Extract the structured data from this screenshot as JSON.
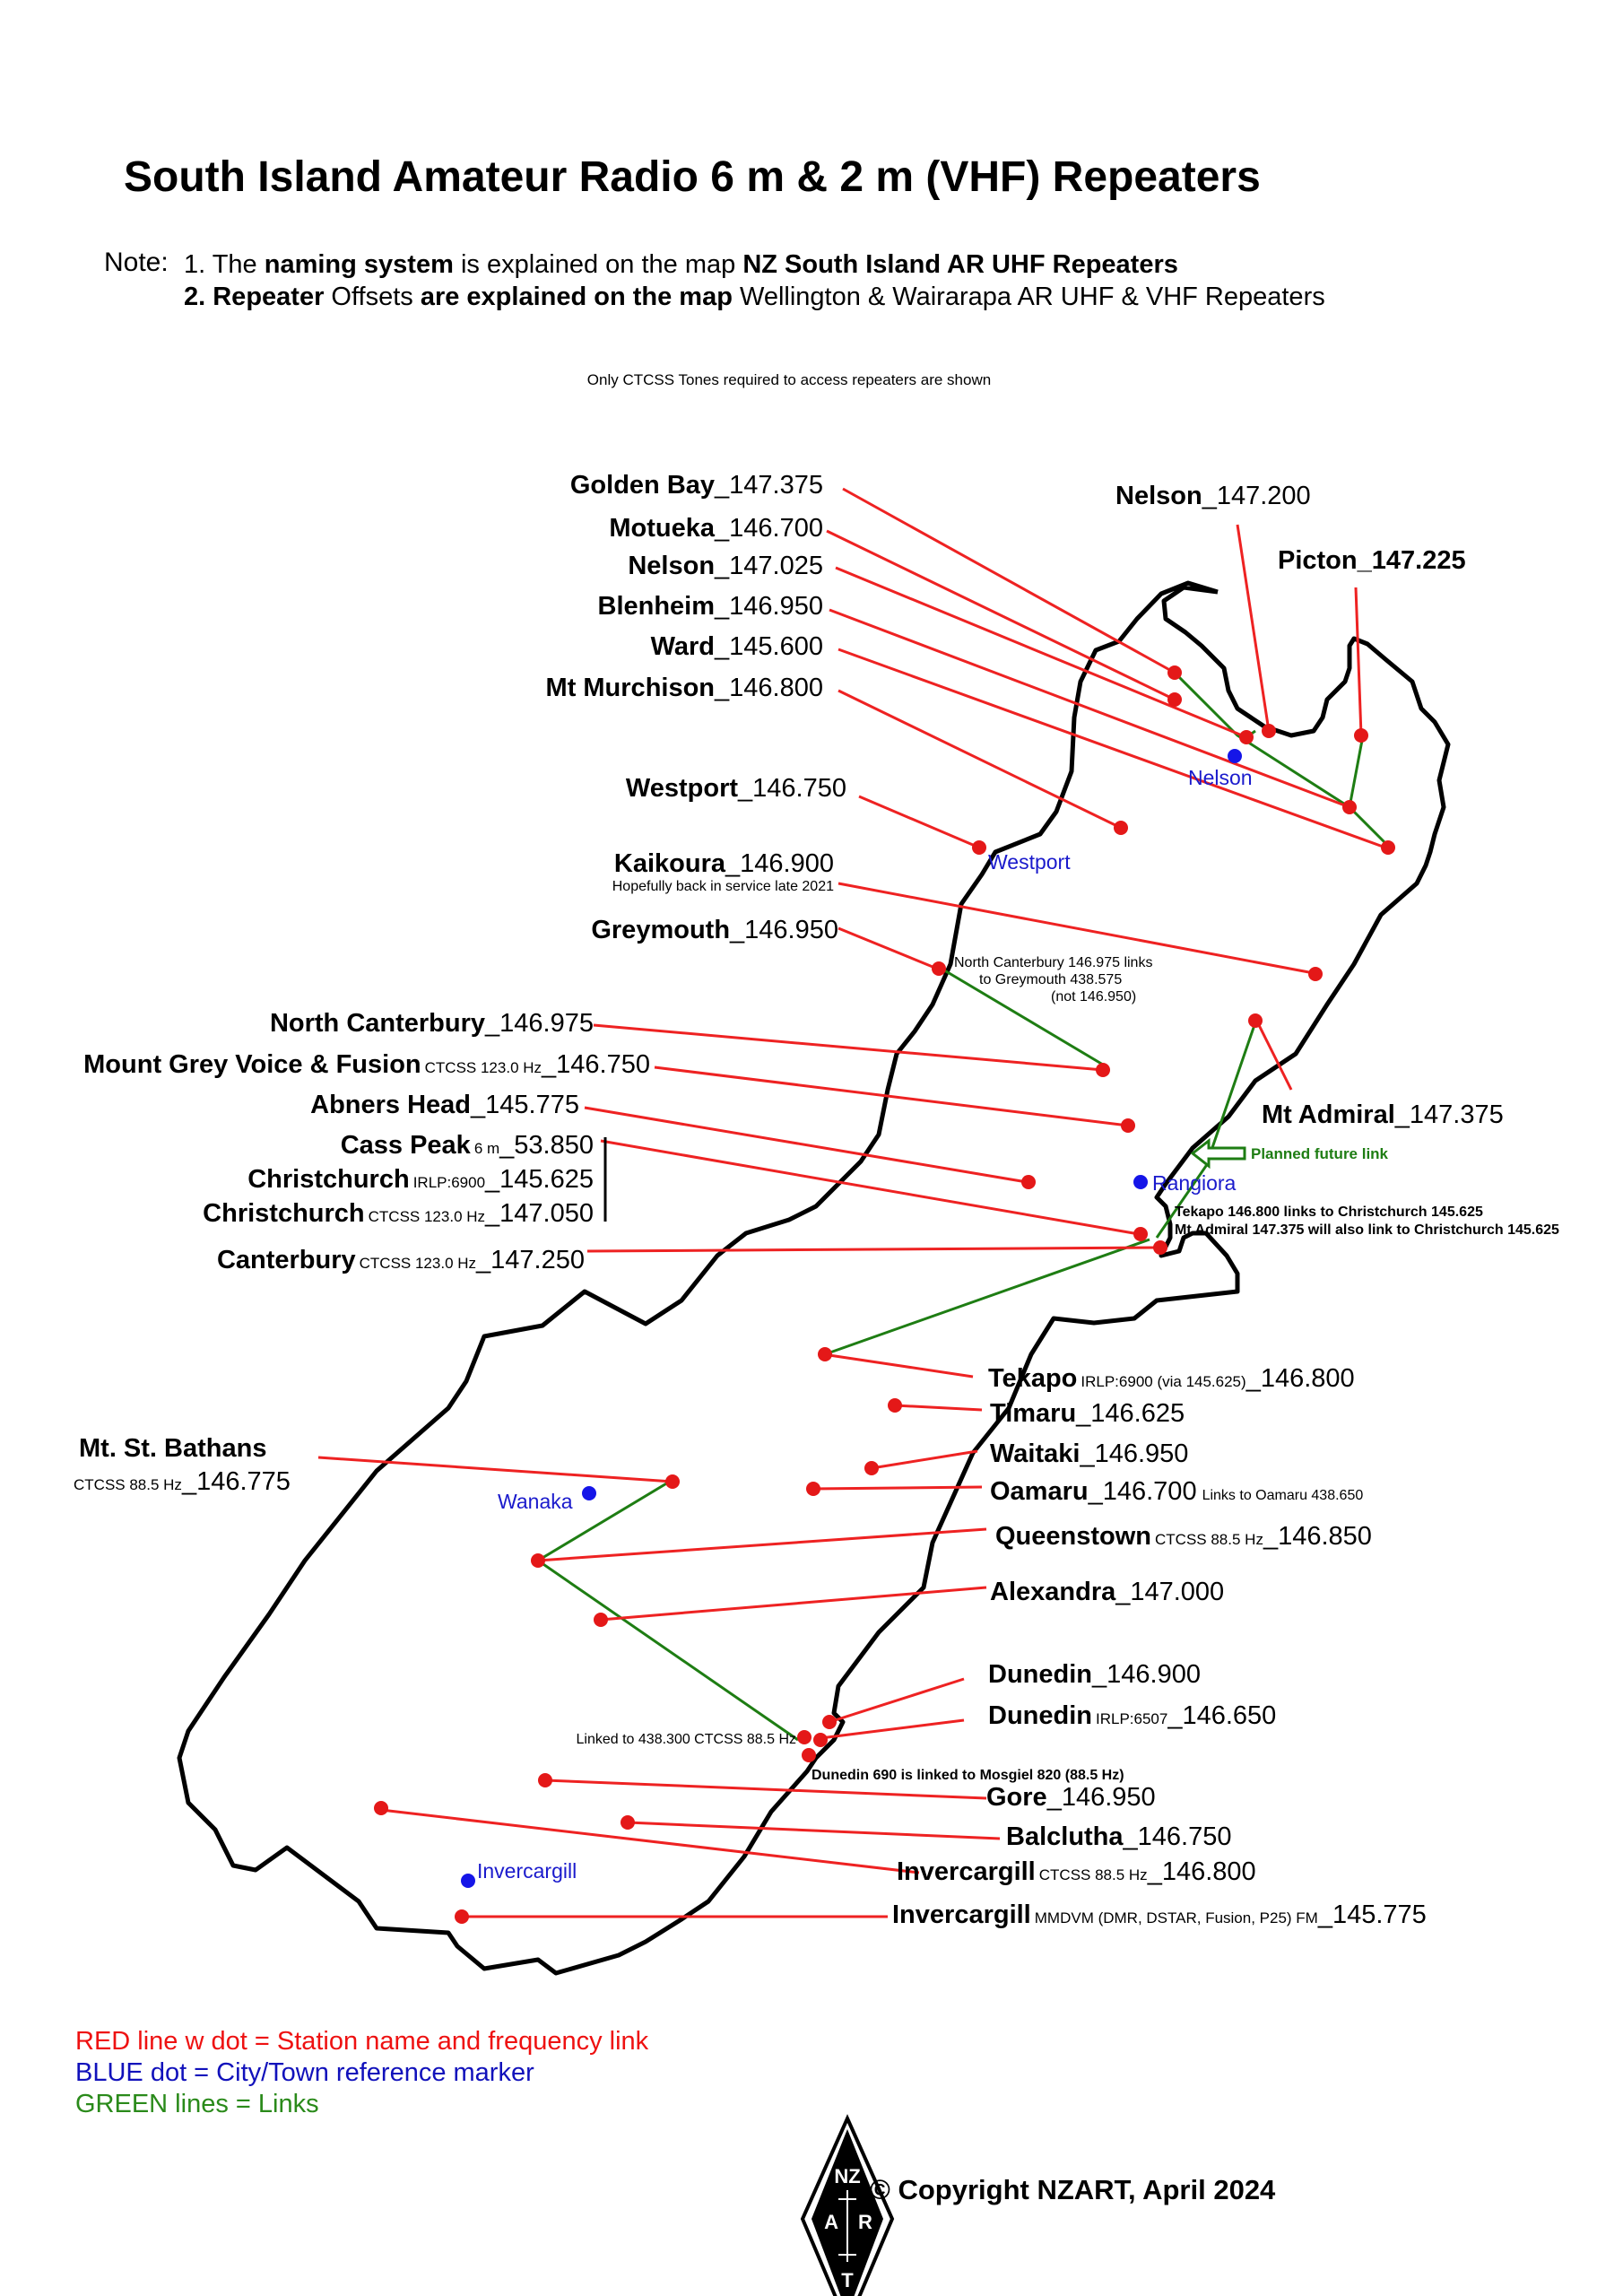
{
  "title": "South Island Amateur Radio 6 m & 2 m (VHF) Repeaters",
  "note_label": "Note:",
  "note1": {
    "a": "1. The ",
    "b": "naming system",
    "c": " is explained on the map ",
    "d": "NZ South Island AR UHF Repeaters"
  },
  "note2": {
    "a": "2. Repeater",
    "b": " Offsets ",
    "c": "are explained on the map",
    "d": " Wellington & Wairarapa AR UHF & VHF Repeaters"
  },
  "subnote": "Only CTCSS Tones required to access repeaters are shown",
  "legend": {
    "red": "RED line w dot = Station name and frequency link",
    "blue": "BLUE dot = City/Town reference marker",
    "green": "GREEN lines = Links"
  },
  "copyright": "© Copyright NZART, April 2024",
  "logo": {
    "top": "NZ",
    "left": "A",
    "right": "R",
    "bottom": "T"
  },
  "colors": {
    "station": "#e41818",
    "town": "#1515e8",
    "link": "#1e7d13",
    "coast": "#000000"
  },
  "towns": {
    "nelson": "Nelson",
    "westport": "Westport",
    "rangiora": "Rangiora",
    "wanaka": "Wanaka",
    "invercargill": "Invercargill"
  },
  "stations": {
    "golden_bay": {
      "name": "Golden Bay",
      "freq": "_147.375"
    },
    "motueka": {
      "name": "Motueka",
      "freq_a": "_146.70",
      "freq_b": "0"
    },
    "nelson_1": {
      "name": "Nelson",
      "freq": "_147.025"
    },
    "blenheim": {
      "name": "Blenheim",
      "freq_a": "_146.95",
      "freq_b": "0"
    },
    "ward": {
      "name": "Ward",
      "freq_a": "_145.60",
      "freq_b": "0"
    },
    "mt_murchison": {
      "name": "Mt Murchison",
      "freq_a": "_146.80",
      "freq_b": "0"
    },
    "nelson_2": {
      "name": "Nelson",
      "freq_a": "_147.20",
      "freq_b": "0"
    },
    "picton": {
      "name": "Picton",
      "freq": "_147.225"
    },
    "westport": {
      "name": "Westport",
      "freq_a": "_146.75",
      "freq_b": "0"
    },
    "kaikoura": {
      "name": "Kaikoura",
      "freq_a": "_146.90",
      "freq_b": "0",
      "note": "Hopefully back in service late 2021"
    },
    "greymouth": {
      "name": "Greymouth",
      "freq_a": "_146.95",
      "freq_b": "0"
    },
    "north_canterbury": {
      "name": "North Canterbury",
      "freq": "_146.975"
    },
    "mount_grey": {
      "name": "Mount Grey Voice & Fusion",
      "tone": "CTCSS 123.0 Hz",
      "freq_a": "_146.75",
      "freq_b": "0"
    },
    "abners_head": {
      "name": "Abners Head",
      "freq": "_145.775"
    },
    "cass_peak": {
      "name": "Cass Peak",
      "tone": "6 m",
      "freq_a": "_53.85",
      "freq_b": "0"
    },
    "christchurch_1": {
      "name": "Christchurch",
      "tone": "IRLP:6900",
      "freq": "_145.625"
    },
    "christchurch_2": {
      "name": "Christchurch",
      "tone": "CTCSS 123.0 Hz",
      "freq_a": "_147.05",
      "freq_b": "0"
    },
    "canterbury": {
      "name": "Canterbury",
      "tone": "CTCSS 123.0 Hz",
      "freq_a": "_147.25",
      "freq_b": "0"
    },
    "mt_admiral": {
      "name": "Mt Admiral",
      "freq": "_147.375"
    },
    "tekapo": {
      "name": "Tekapo",
      "tone": "IRLP:6900 (via 145.625)",
      "freq_a": "_146.80",
      "freq_b": "0"
    },
    "timaru": {
      "name": "Timaru",
      "freq": "_146.625"
    },
    "waitaki": {
      "name": "Waitaki",
      "freq_a": "_146.95",
      "freq_b": "0"
    },
    "oamaru": {
      "name": "Oamaru",
      "freq_a": "_146.70",
      "freq_b": "0",
      "link_note": "Links to Oamaru 438.650"
    },
    "queenstown": {
      "name": "Queenstown",
      "tone": "CTCSS 88.5 Hz",
      "freq_a": "_146.85",
      "freq_b": "0"
    },
    "alexandra": {
      "name": "Alexandra",
      "freq": "_147.000"
    },
    "mt_st_bathans": {
      "name": "Mt. St. Bathans",
      "tone": "CTCSS 88.5 Hz",
      "freq": "_146.775"
    },
    "dunedin_1": {
      "name": "Dunedin",
      "freq_a": "_146.90",
      "freq_b": "0"
    },
    "dunedin_2": {
      "name": "Dunedin",
      "tone": "IRLP:6507",
      "freq_a": "_146.65",
      "freq_b": "0"
    },
    "gore": {
      "name": "Gore",
      "freq_a": "_146.95",
      "freq_b": "0"
    },
    "balclutha": {
      "name": "Balclutha",
      "freq_a": "_146.75",
      "freq_b": "0"
    },
    "invercargill_1": {
      "name": "Invercargill",
      "tone": "CTCSS 88.5 Hz",
      "freq_a": "_146.80",
      "freq_b": "0"
    },
    "invercargill_2": {
      "name": "Invercargill",
      "tone": "MMDVM (DMR, DSTAR, Fusion, P25) FM",
      "freq": "_145.775"
    }
  },
  "annotations": {
    "north_canterbury_link_1": "North Canterbury 146.975 links",
    "north_canterbury_link_2": "to Greymouth 438.575",
    "north_canterbury_link_3": "(not 146.950)",
    "planned_link": "Planned future link",
    "tekapo_link": "Tekapo 146.800 links to Christchurch 145.625",
    "admiral_link": "Mt Admiral 147.375 will also link to Christchurch 145.625",
    "linked_438": "Linked to 438.300 CTCSS 88.5 Hz",
    "dunedin_mosgiel": "Dunedin 690 is linked to Mosgiel 820 (88.5 Hz)"
  }
}
